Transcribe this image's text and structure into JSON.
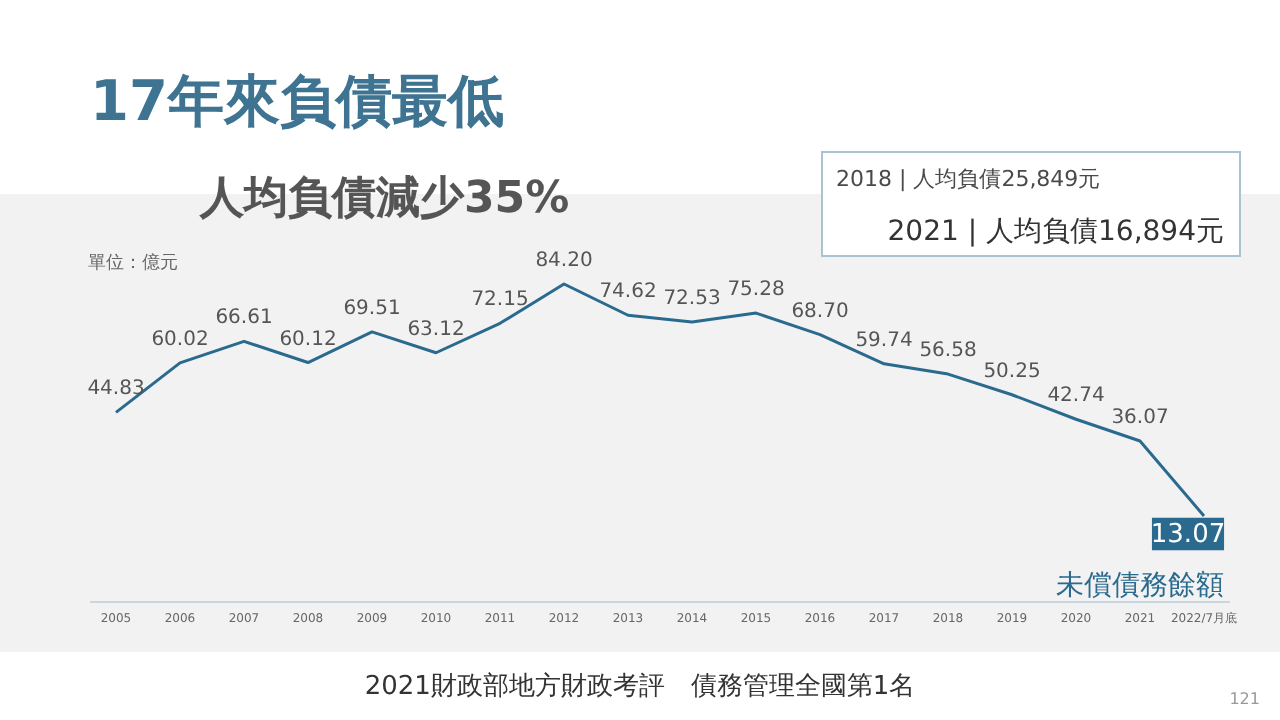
{
  "chart_data": {
    "type": "line",
    "title": "17年來負債最低",
    "subtitle": "人均負債減少35%",
    "ylabel": "單位：億元",
    "categories": [
      "2005",
      "2006",
      "2007",
      "2008",
      "2009",
      "2010",
      "2011",
      "2012",
      "2013",
      "2014",
      "2015",
      "2016",
      "2017",
      "2018",
      "2019",
      "2020",
      "2021",
      "2022/7月底"
    ],
    "series": [
      {
        "name": "未償債務餘額",
        "color": "#2a6a8e",
        "values": [
          44.83,
          60.02,
          66.61,
          60.12,
          69.51,
          63.12,
          72.15,
          84.2,
          74.62,
          72.53,
          75.28,
          68.7,
          59.74,
          56.58,
          50.25,
          42.74,
          36.07,
          13.07
        ],
        "value_labels": [
          "44.83",
          "60.02",
          "66.61",
          "60.12",
          "69.51",
          "63.12",
          "72.15",
          "84.20",
          "74.62",
          "72.53",
          "75.28",
          "68.70",
          "59.74",
          "56.58",
          "50.25",
          "42.74",
          "36.07",
          "13.07"
        ]
      }
    ],
    "annotations": [
      "2018 | 人均負債25,849元",
      "2021 | 人均負債16,894元",
      "2021財政部地方財政考評　債務管理全國第1名",
      "121"
    ]
  }
}
